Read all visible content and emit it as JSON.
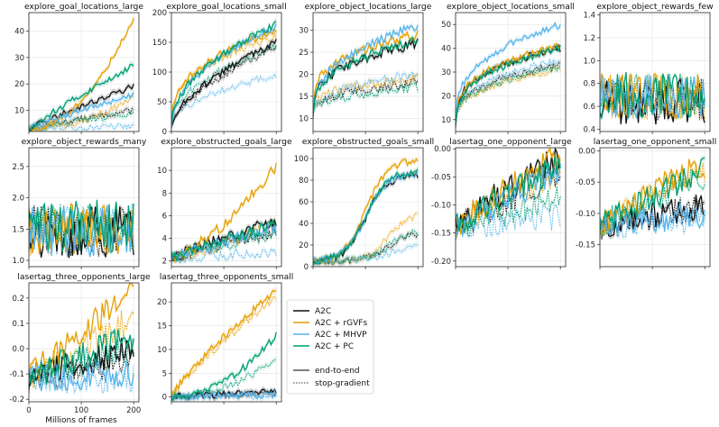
{
  "figure": {
    "xlabel": "Millions of frames"
  },
  "colors": {
    "A2C": "#111111",
    "A2C + rGVFs": "#e69f00",
    "A2C + MHVP": "#56b4e9",
    "A2C + PC": "#009e73"
  },
  "legend": {
    "methods": [
      "A2C",
      "A2C + rGVFs",
      "A2C + MHVP",
      "A2C + PC"
    ],
    "styles": [
      "end-to-end",
      "stop-gradient"
    ]
  },
  "chart_data": [
    {
      "type": "line",
      "title": "explore_goal_locations_large",
      "ylim": [
        2,
        47
      ],
      "yticks": [
        10,
        20,
        30,
        40
      ],
      "xticks": [
        0,
        100,
        200
      ],
      "show_xticklabels": false,
      "end": {
        "A2C": 19,
        "A2C + rGVFs": 45,
        "A2C + MHVP": 16,
        "A2C + PC": 27
      },
      "sg": {
        "A2C": 10,
        "A2C + rGVFs": 15,
        "A2C + MHVP": 4,
        "A2C + PC": 9
      },
      "start": 3,
      "growth": {
        "A2C + rGVFs": 0.5
      },
      "noise": 0.025
    },
    {
      "type": "line",
      "title": "explore_goal_locations_small",
      "ylim": [
        0,
        200
      ],
      "yticks": [
        0,
        50,
        100,
        150,
        200
      ],
      "xticks": [
        0,
        100,
        200
      ],
      "show_xticklabels": false,
      "end": {
        "A2C": 150,
        "A2C + rGVFs": 170,
        "A2C + MHVP": 178,
        "A2C + PC": 180
      },
      "sg": {
        "A2C": 142,
        "A2C + rGVFs": 160,
        "A2C + MHVP": 95,
        "A2C + PC": 145
      },
      "start": 10,
      "growth": {
        "A2C": 1.6,
        "A2C + rGVFs": 2.6,
        "A2C + MHVP": 2.0,
        "A2C + PC": 2.0
      },
      "noise": 0.03
    },
    {
      "type": "line",
      "title": "explore_object_locations_large",
      "ylim": [
        7,
        34
      ],
      "yticks": [
        10,
        15,
        20,
        25,
        30
      ],
      "xticks": [
        0,
        100,
        200
      ],
      "show_xticklabels": false,
      "end": {
        "A2C": 27,
        "A2C + rGVFs": 29,
        "A2C + MHVP": 31,
        "A2C + PC": 28
      },
      "sg": {
        "A2C": 18,
        "A2C + rGVFs": 19,
        "A2C + MHVP": 20,
        "A2C + PC": 17
      },
      "start": 11,
      "growth": {
        "A2C": 3.0,
        "A2C + rGVFs": 3.4,
        "A2C + MHVP": 2.6,
        "A2C + PC": 2.6
      },
      "noise": 0.04
    },
    {
      "type": "line",
      "title": "explore_object_locations_small",
      "ylim": [
        5,
        55
      ],
      "yticks": [
        10,
        20,
        30,
        40,
        50
      ],
      "xticks": [
        0,
        100,
        200
      ],
      "show_xticklabels": false,
      "end": {
        "A2C": 40,
        "A2C + rGVFs": 41,
        "A2C + MHVP": 50,
        "A2C + PC": 40
      },
      "sg": {
        "A2C": 33,
        "A2C + rGVFs": 31,
        "A2C + MHVP": 35,
        "A2C + PC": 32
      },
      "start": 7,
      "growth": {
        "A2C": 3.2,
        "A2C + rGVFs": 3.2,
        "A2C + MHVP": 3.0,
        "A2C + PC": 3.0
      },
      "noise": 0.03
    },
    {
      "type": "line",
      "title": "explore_object_rewards_few",
      "ylim": [
        0.38,
        1.42
      ],
      "yticks": [
        0.4,
        0.6,
        0.8,
        1.0,
        1.2,
        1.4
      ],
      "xticks": [
        0,
        100,
        200
      ],
      "show_xticklabels": false,
      "end": {
        "A2C": 0.6,
        "A2C + rGVFs": 0.7,
        "A2C + MHVP": 0.68,
        "A2C + PC": 0.72
      },
      "sg": {
        "A2C": 0.66,
        "A2C + rGVFs": 0.69,
        "A2C + MHVP": 0.7,
        "A2C + PC": 0.71
      },
      "start": 0.68,
      "flat": true,
      "noise": 0.12
    },
    {
      "type": "line",
      "title": "explore_object_rewards_many",
      "ylim": [
        0.9,
        2.8
      ],
      "yticks": [
        1.0,
        1.5,
        2.0,
        2.5
      ],
      "xticks": [
        0,
        100,
        200
      ],
      "show_xticklabels": false,
      "end": {
        "A2C": 1.4,
        "A2C + rGVFs": 1.5,
        "A2C + MHVP": 1.45,
        "A2C + PC": 1.6
      },
      "sg": {
        "A2C": 1.45,
        "A2C + rGVFs": 1.5,
        "A2C + MHVP": 1.5,
        "A2C + PC": 1.55
      },
      "start": 1.5,
      "flat": true,
      "noise": 0.14
    },
    {
      "type": "line",
      "title": "explore_obstructed_goals_large",
      "ylim": [
        1.5,
        12
      ],
      "yticks": [
        2,
        4,
        6,
        8,
        10
      ],
      "xticks": [
        0,
        100,
        200
      ],
      "show_xticklabels": false,
      "end": {
        "A2C": 5.5,
        "A2C + rGVFs": 10.3,
        "A2C + MHVP": 5.0,
        "A2C + PC": 5.2
      },
      "sg": {
        "A2C": 4.5,
        "A2C + rGVFs": 5.5,
        "A2C + MHVP": 2.7,
        "A2C + PC": 4.3
      },
      "start": 2.3,
      "growth": {
        "A2C + rGVFs": 0.7
      },
      "noise": 0.05
    },
    {
      "type": "line",
      "title": "explore_obstructed_goals_small",
      "ylim": [
        0,
        110
      ],
      "yticks": [
        0,
        20,
        40,
        60,
        80,
        100
      ],
      "xticks": [
        0,
        100,
        200
      ],
      "show_xticklabels": false,
      "end": {
        "A2C": 85,
        "A2C + rGVFs": 98,
        "A2C + MHVP": 86,
        "A2C + PC": 88
      },
      "sg": {
        "A2C": 32,
        "A2C + rGVFs": 50,
        "A2C + MHVP": 20,
        "A2C + PC": 33
      },
      "start": 5,
      "sigmoid": true,
      "noise": 0.03
    },
    {
      "type": "line",
      "title": "lasertag_one_opponent_large",
      "ylim": [
        -0.21,
        0.002
      ],
      "yticks": [
        -0.2,
        -0.15,
        -0.1,
        -0.05,
        0.0
      ],
      "xticks": [
        0,
        100,
        200
      ],
      "show_xticklabels": false,
      "end": {
        "A2C": -0.01,
        "A2C + rGVFs": -0.01,
        "A2C + MHVP": -0.04,
        "A2C + PC": -0.03
      },
      "sg": {
        "A2C": -0.05,
        "A2C + rGVFs": -0.04,
        "A2C + MHVP": -0.12,
        "A2C + PC": -0.09
      },
      "start": -0.14,
      "noise": 0.12
    },
    {
      "type": "line",
      "title": "lasertag_one_opponent_small",
      "ylim": [
        -0.185,
        0.005
      ],
      "yticks": [
        -0.15,
        -0.1,
        -0.05,
        0.0
      ],
      "xticks": [
        0,
        100,
        200
      ],
      "show_xticklabels": false,
      "end": {
        "A2C": -0.09,
        "A2C + rGVFs": -0.02,
        "A2C + MHVP": -0.1,
        "A2C + PC": -0.03
      },
      "sg": {
        "A2C": -0.09,
        "A2C + rGVFs": -0.03,
        "A2C + MHVP": -0.11,
        "A2C + PC": -0.04
      },
      "start": -0.12,
      "noise": 0.12
    },
    {
      "type": "line",
      "title": "lasertag_three_opponents_large",
      "ylim": [
        -0.21,
        0.26
      ],
      "yticks": [
        -0.2,
        -0.1,
        0.0,
        0.1,
        0.2
      ],
      "xticks": [
        0,
        100,
        200
      ],
      "xticklabels": [
        "0",
        "100",
        "200"
      ],
      "show_xticklabels": true,
      "end": {
        "A2C": 0.0,
        "A2C + rGVFs": 0.22,
        "A2C + MHVP": -0.1,
        "A2C + PC": 0.05
      },
      "sg": {
        "A2C": -0.05,
        "A2C + rGVFs": 0.12,
        "A2C + MHVP": -0.12,
        "A2C + PC": 0.0
      },
      "start": -0.12,
      "noise": 0.12
    },
    {
      "type": "line",
      "title": "lasertag_three_opponents_small",
      "ylim": [
        -1,
        24
      ],
      "yticks": [
        0,
        5,
        10,
        15,
        20
      ],
      "xticks": [
        0,
        100,
        200
      ],
      "show_xticklabels": false,
      "end": {
        "A2C": 1.2,
        "A2C + rGVFs": 22.5,
        "A2C + MHVP": 0.5,
        "A2C + PC": 13
      },
      "sg": {
        "A2C": 0.6,
        "A2C + rGVFs": 21,
        "A2C + MHVP": 0.3,
        "A2C + PC": 8
      },
      "start": 0,
      "growth": {
        "A2C + rGVFs": 1.2,
        "A2C + PC": 0.5
      },
      "noise": 0.03
    }
  ]
}
